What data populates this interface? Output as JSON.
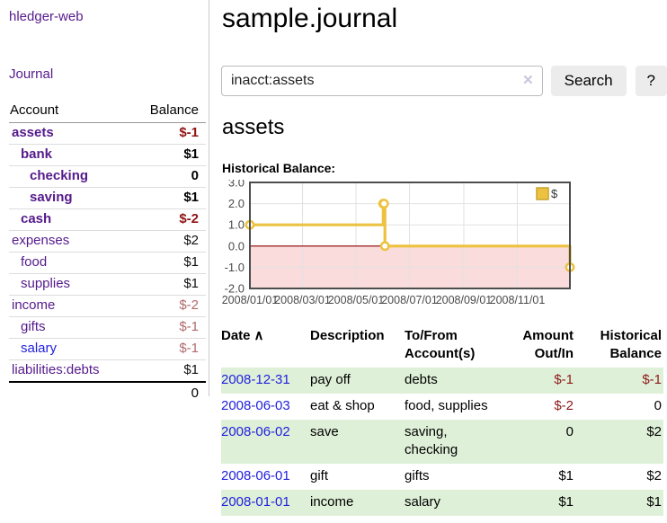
{
  "app": {
    "title": "hledger-web"
  },
  "sidebar": {
    "journal_label": "Journal",
    "accounts": {
      "col_account": "Account",
      "col_balance": "Balance",
      "rows": [
        {
          "name": "assets",
          "balance": "$-1",
          "indent": 0,
          "bold": true,
          "bal_class": "neg-strong",
          "visited": true
        },
        {
          "name": "bank",
          "balance": "$1",
          "indent": 1,
          "bold": true,
          "bal_class": "pos-strong",
          "visited": true
        },
        {
          "name": "checking",
          "balance": "0",
          "indent": 2,
          "bold": true,
          "bal_class": "pos-strong",
          "visited": true
        },
        {
          "name": "saving",
          "balance": "$1",
          "indent": 2,
          "bold": true,
          "bal_class": "pos-strong",
          "visited": true
        },
        {
          "name": "cash",
          "balance": "$-2",
          "indent": 1,
          "bold": true,
          "bal_class": "neg-strong",
          "visited": true
        },
        {
          "name": "expenses",
          "balance": "$2",
          "indent": 0,
          "bold": false,
          "bal_class": "pos",
          "visited": true
        },
        {
          "name": "food",
          "balance": "$1",
          "indent": 1,
          "bold": false,
          "bal_class": "pos",
          "visited": true
        },
        {
          "name": "supplies",
          "balance": "$1",
          "indent": 1,
          "bold": false,
          "bal_class": "pos",
          "visited": true
        },
        {
          "name": "income",
          "balance": "$-2",
          "indent": 0,
          "bold": false,
          "bal_class": "neg-soft",
          "visited": true
        },
        {
          "name": "gifts",
          "balance": "$-1",
          "indent": 1,
          "bold": false,
          "bal_class": "neg-soft",
          "visited": true
        },
        {
          "name": "salary",
          "balance": "$-1",
          "indent": 1,
          "bold": false,
          "bal_class": "neg-soft",
          "visited": false
        },
        {
          "name": "liabilities:debts",
          "balance": "$1",
          "indent": 0,
          "bold": false,
          "bal_class": "pos",
          "visited": true
        }
      ],
      "total": "0"
    }
  },
  "main": {
    "title": "sample.journal",
    "search": {
      "value": "inacct:assets",
      "clear_icon": "✕",
      "button": "Search",
      "help_button": "?"
    },
    "account_heading": "assets",
    "chart_label": "Historical Balance:"
  },
  "chart_data": {
    "type": "line",
    "title": "Historical Balance",
    "step": true,
    "series": [
      {
        "name": "$",
        "points": [
          [
            "2008-01-01",
            1
          ],
          [
            "2008-06-01",
            2
          ],
          [
            "2008-06-02",
            2
          ],
          [
            "2008-06-03",
            0
          ],
          [
            "2008-12-31",
            -1
          ]
        ]
      }
    ],
    "x_range": [
      "2008-01-01",
      "2008-12-31"
    ],
    "ylim": [
      -2,
      3
    ],
    "x_ticks": [
      "2008/01/01",
      "2008/03/01",
      "2008/05/01",
      "2008/07/01",
      "2008/09/01",
      "2008/11/01"
    ],
    "y_ticks": [
      "3.0",
      "2.0",
      "1.0",
      "0.0",
      "-1.0",
      "-2.0"
    ],
    "legend_position": "top-right",
    "negative_region_shaded": true,
    "grid": true,
    "colors": {
      "series": "#edc240",
      "negative_fill": "#fadcdc",
      "zero_line": "#8b0000",
      "grid": "#e2e2e2",
      "border": "#4d4d4d",
      "tick_text": "#4a4a4a"
    }
  },
  "register": {
    "headers": {
      "date": "Date",
      "sort_icon": "∧",
      "description": "Description",
      "tofrom": "To/From Account(s)",
      "amount": "Amount Out/In",
      "balance": "Historical Balance"
    },
    "rows": [
      {
        "date": "2008-12-31",
        "description": "pay off",
        "tofrom": "debts",
        "amount": "$-1",
        "amount_neg": true,
        "balance": "$-1",
        "balance_neg": true
      },
      {
        "date": "2008-06-03",
        "description": "eat & shop",
        "tofrom": "food, supplies",
        "amount": "$-2",
        "amount_neg": true,
        "balance": "0",
        "balance_neg": false
      },
      {
        "date": "2008-06-02",
        "description": "save",
        "tofrom": "saving, checking",
        "amount": "0",
        "amount_neg": false,
        "balance": "$2",
        "balance_neg": false
      },
      {
        "date": "2008-06-01",
        "description": "gift",
        "tofrom": "gifts",
        "amount": "$1",
        "amount_neg": false,
        "balance": "$2",
        "balance_neg": false
      },
      {
        "date": "2008-01-01",
        "description": "income",
        "tofrom": "salary",
        "amount": "$1",
        "amount_neg": false,
        "balance": "$1",
        "balance_neg": false
      }
    ]
  }
}
